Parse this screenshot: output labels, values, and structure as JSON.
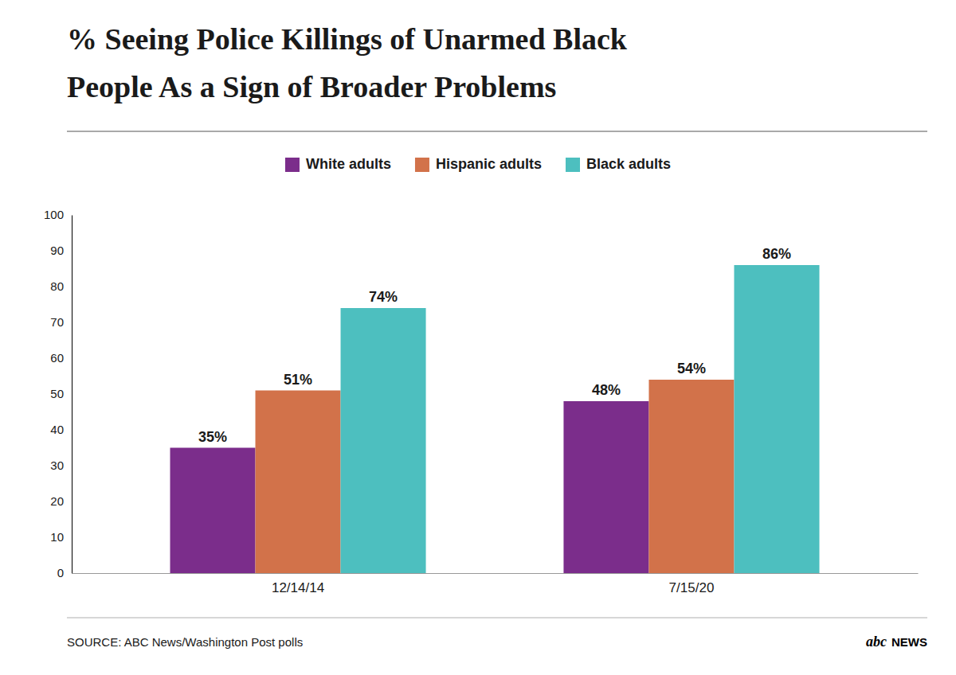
{
  "chart_data": {
    "type": "bar",
    "title": [
      "% Seeing Police Killings of Unarmed Black",
      "People As a Sign of Broader Problems"
    ],
    "categories": [
      "12/14/14",
      "7/15/20"
    ],
    "series": [
      {
        "name": "White adults",
        "color": "#7b2d8b",
        "values": [
          35,
          48
        ],
        "value_labels": [
          "35%",
          "48%"
        ]
      },
      {
        "name": "Hispanic adults",
        "color": "#d2724a",
        "values": [
          51,
          54
        ],
        "value_labels": [
          "51%",
          "54%"
        ]
      },
      {
        "name": "Black adults",
        "color": "#4dbfbf",
        "values": [
          74,
          86
        ],
        "value_labels": [
          "74%",
          "86%"
        ]
      }
    ],
    "ylim": [
      0,
      100
    ],
    "yticks": [
      0,
      10,
      20,
      30,
      40,
      50,
      60,
      70,
      80,
      90,
      100
    ],
    "grid": false,
    "legend": "top",
    "data_labels": true,
    "annotations": [
      "SOURCE: ABC News/Washington Post polls",
      "abc",
      "NEWS"
    ]
  }
}
